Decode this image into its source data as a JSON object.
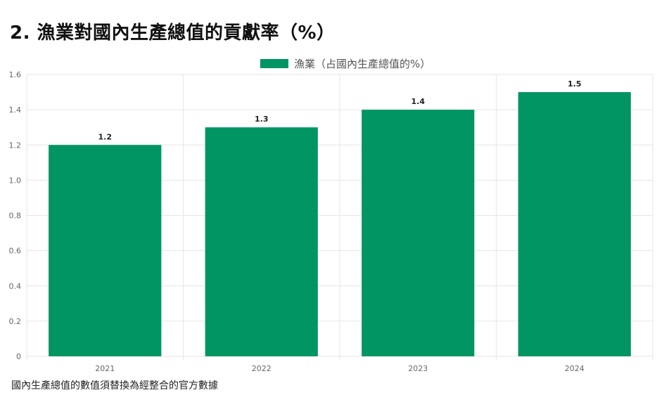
{
  "page": {
    "title": "2. 漁業對國內生產總值的貢獻率（%）",
    "note": "國內生產總值的數值須替換為經整合的官方數據"
  },
  "chart_data": {
    "type": "bar",
    "categories": [
      "2021",
      "2022",
      "2023",
      "2024"
    ],
    "series": [
      {
        "name": "漁業（占國內生產總值的%）",
        "values": [
          1.2,
          1.3,
          1.4,
          1.5
        ],
        "color": "#009562"
      }
    ],
    "ylim": [
      0,
      1.6
    ],
    "yticks": [
      "0",
      "0.2",
      "0.4",
      "0.6",
      "0.8",
      "1.0",
      "1.2",
      "1.4",
      "1.6"
    ],
    "data_labels": [
      "1.2",
      "1.3",
      "1.4",
      "1.5"
    ],
    "grid": true,
    "legend_position": "top-center"
  }
}
